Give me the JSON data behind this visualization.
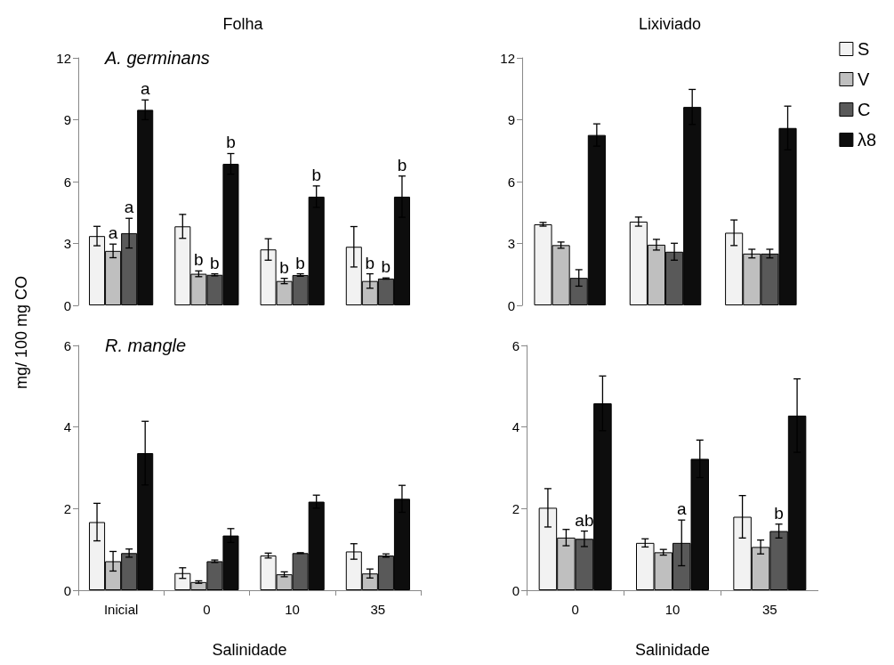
{
  "chart_data": [
    {
      "type": "bar",
      "title": "Folha",
      "ylabel": "mg/ 100 mg CO",
      "annotations": [
        "A. germinans"
      ],
      "categories": [
        null,
        null,
        null,
        null
      ],
      "tick_labels": "y",
      "ylim": [
        0,
        12
      ],
      "yticks": [
        0,
        3,
        6,
        9,
        12
      ],
      "series": [
        {
          "color": "#f2f2f2",
          "values": [
            3.36,
            3.83,
            2.71,
            2.84
          ],
          "errors": [
            0.47,
            0.58,
            0.52,
            0.98
          ]
        },
        {
          "color": "#bfbfbf",
          "values": [
            2.64,
            1.53,
            1.18,
            1.18
          ],
          "errors": [
            0.33,
            0.14,
            0.13,
            0.35
          ],
          "value_labels": [
            "a",
            "b",
            "b",
            "b"
          ]
        },
        {
          "color": "#595959",
          "values": [
            3.5,
            1.48,
            1.47,
            1.3
          ],
          "errors": [
            0.72,
            0.05,
            0.06,
            0.03
          ],
          "value_labels": [
            "a",
            "b",
            "b",
            "b"
          ]
        },
        {
          "color": "#0d0d0d",
          "values": [
            9.48,
            6.86,
            5.27,
            5.27
          ],
          "errors": [
            0.48,
            0.5,
            0.52,
            1.0
          ],
          "value_labels": [
            "a",
            "b",
            "b",
            "b"
          ]
        }
      ]
    },
    {
      "type": "bar",
      "title": "Lixiviado",
      "categories": [
        null,
        null,
        null
      ],
      "tick_labels": "y",
      "ylim": [
        0,
        12
      ],
      "yticks": [
        0,
        3,
        6,
        9,
        12
      ],
      "legend": "right",
      "series": [
        {
          "name": "S",
          "color": "#f2f2f2",
          "values": [
            3.93,
            4.06,
            3.52
          ],
          "errors": [
            0.09,
            0.22,
            0.62
          ]
        },
        {
          "name": "V",
          "color": "#bfbfbf",
          "values": [
            2.92,
            2.94,
            2.51
          ],
          "errors": [
            0.15,
            0.26,
            0.21
          ]
        },
        {
          "name": "C",
          "color": "#595959",
          "values": [
            1.33,
            2.6,
            2.51
          ],
          "errors": [
            0.4,
            0.41,
            0.21
          ]
        },
        {
          "name": "λ8",
          "color": "#0d0d0d",
          "values": [
            8.26,
            9.62,
            8.6
          ],
          "errors": [
            0.54,
            0.85,
            1.06
          ]
        }
      ]
    },
    {
      "type": "bar",
      "xlabel": "Salinidade",
      "annotations": [
        "R. mangle"
      ],
      "categories": [
        "Inicial",
        "0",
        "10",
        "35"
      ],
      "ylim": [
        0,
        6
      ],
      "yticks": [
        0,
        2,
        4,
        6
      ],
      "series": [
        {
          "color": "#f2f2f2",
          "values": [
            1.67,
            0.42,
            0.85,
            0.95
          ],
          "errors": [
            0.46,
            0.13,
            0.06,
            0.19
          ]
        },
        {
          "color": "#bfbfbf",
          "values": [
            0.71,
            0.2,
            0.39,
            0.41
          ],
          "errors": [
            0.24,
            0.03,
            0.06,
            0.11
          ]
        },
        {
          "color": "#595959",
          "values": [
            0.91,
            0.71,
            0.91,
            0.85
          ],
          "errors": [
            0.1,
            0.03,
            0.01,
            0.04
          ]
        },
        {
          "color": "#0d0d0d",
          "values": [
            3.36,
            1.34,
            2.17,
            2.24
          ],
          "errors": [
            0.78,
            0.17,
            0.16,
            0.33
          ]
        }
      ]
    },
    {
      "type": "bar",
      "xlabel": "Salinidade",
      "categories": [
        "0",
        "10",
        "35"
      ],
      "ylim": [
        0,
        6
      ],
      "yticks": [
        0,
        2,
        4,
        6
      ],
      "series": [
        {
          "color": "#f2f2f2",
          "values": [
            2.02,
            1.16,
            1.8
          ],
          "errors": [
            0.47,
            0.1,
            0.52
          ]
        },
        {
          "color": "#bfbfbf",
          "values": [
            1.29,
            0.93,
            1.06
          ],
          "errors": [
            0.2,
            0.07,
            0.17
          ]
        },
        {
          "color": "#595959",
          "values": [
            1.26,
            1.16,
            1.45
          ],
          "errors": [
            0.19,
            0.56,
            0.17
          ],
          "value_labels": [
            "ab",
            "a",
            "b"
          ]
        },
        {
          "color": "#0d0d0d",
          "values": [
            4.58,
            3.22,
            4.28
          ],
          "errors": [
            0.67,
            0.46,
            0.9
          ]
        }
      ]
    }
  ]
}
